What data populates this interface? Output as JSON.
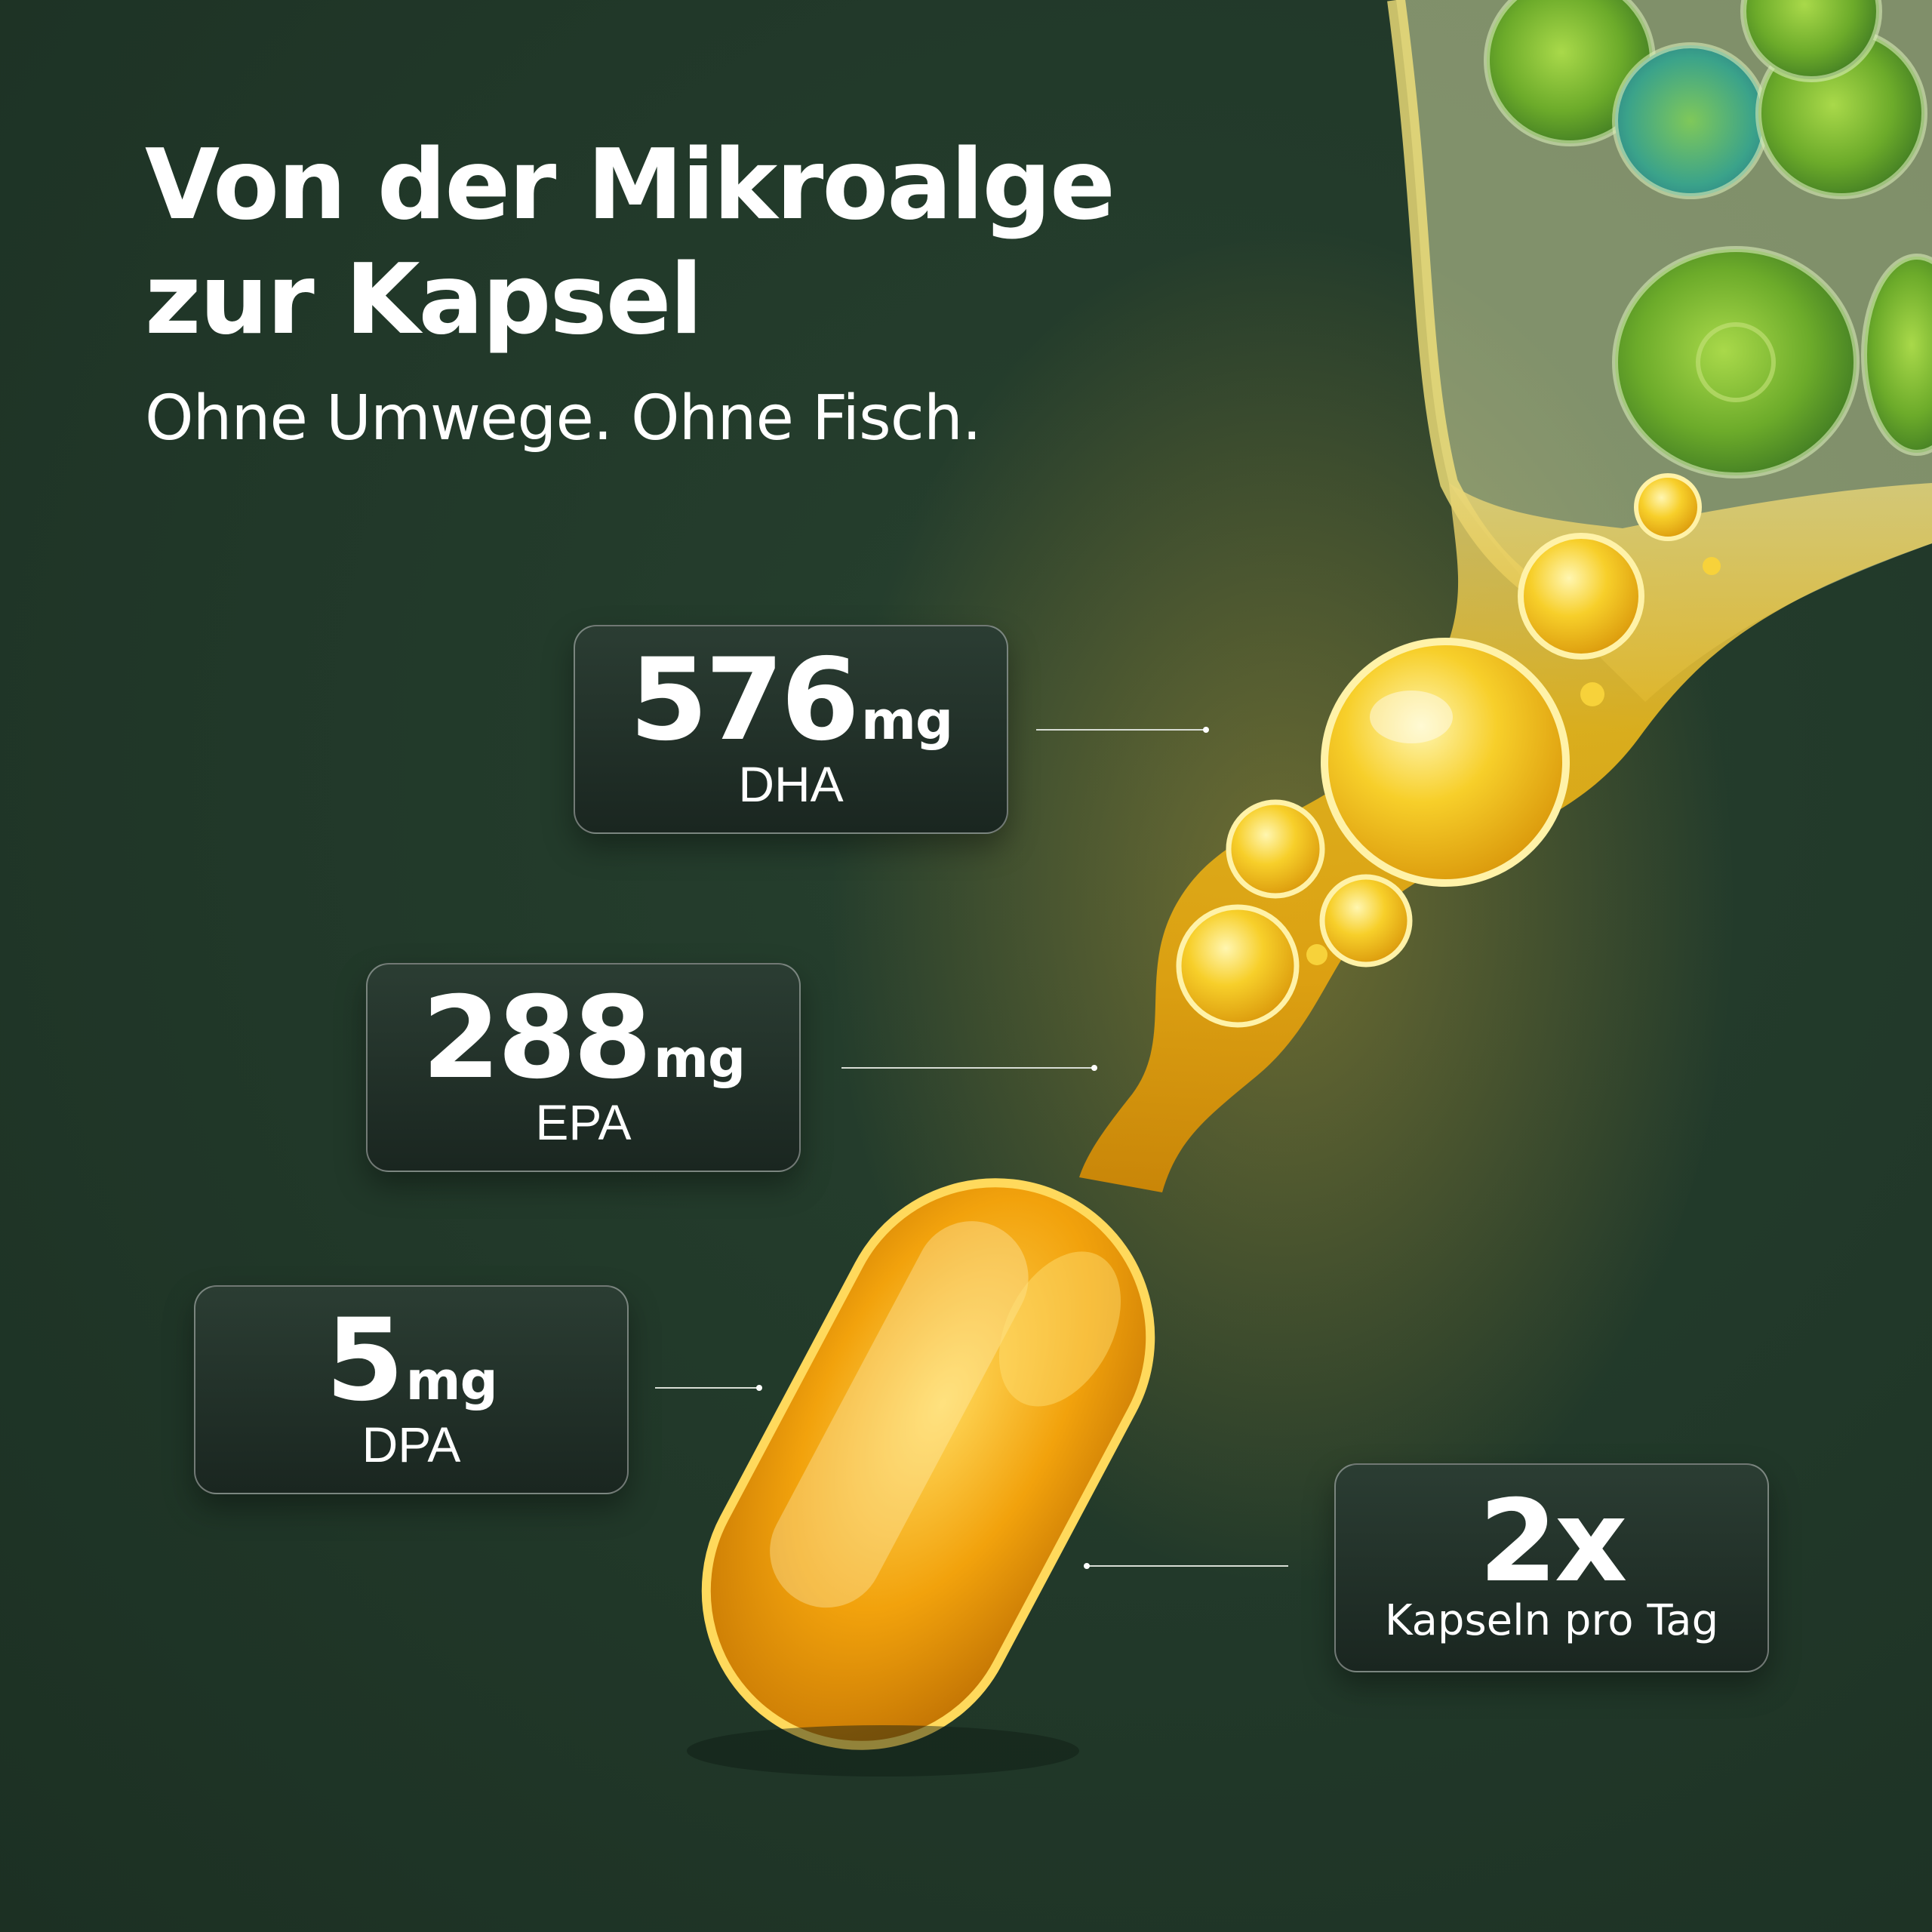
{
  "headline": {
    "line1": "Von der Mikroalge",
    "line2": "zur Kapsel",
    "subtitle": "Ohne Umwege. Ohne Fisch."
  },
  "callouts": [
    {
      "value": "576",
      "unit": "mg",
      "label": "DHA"
    },
    {
      "value": "288",
      "unit": "mg",
      "label": "EPA"
    },
    {
      "value": "5",
      "unit": "mg",
      "label": "DPA"
    },
    {
      "value": "2x",
      "unit": "",
      "label": "Kapseln pro Tag"
    }
  ],
  "illustration": {
    "subject": [
      "microalgae-cells",
      "oil-stream",
      "oil-bubbles",
      "softgel-capsule"
    ]
  },
  "colors": {
    "background": "#223a2c",
    "card_top": "#2b3d33",
    "card_bottom": "#1a2620",
    "text": "#ffffff",
    "oil_gold": "#f2a20c",
    "algae_green": "#7ec22a"
  }
}
